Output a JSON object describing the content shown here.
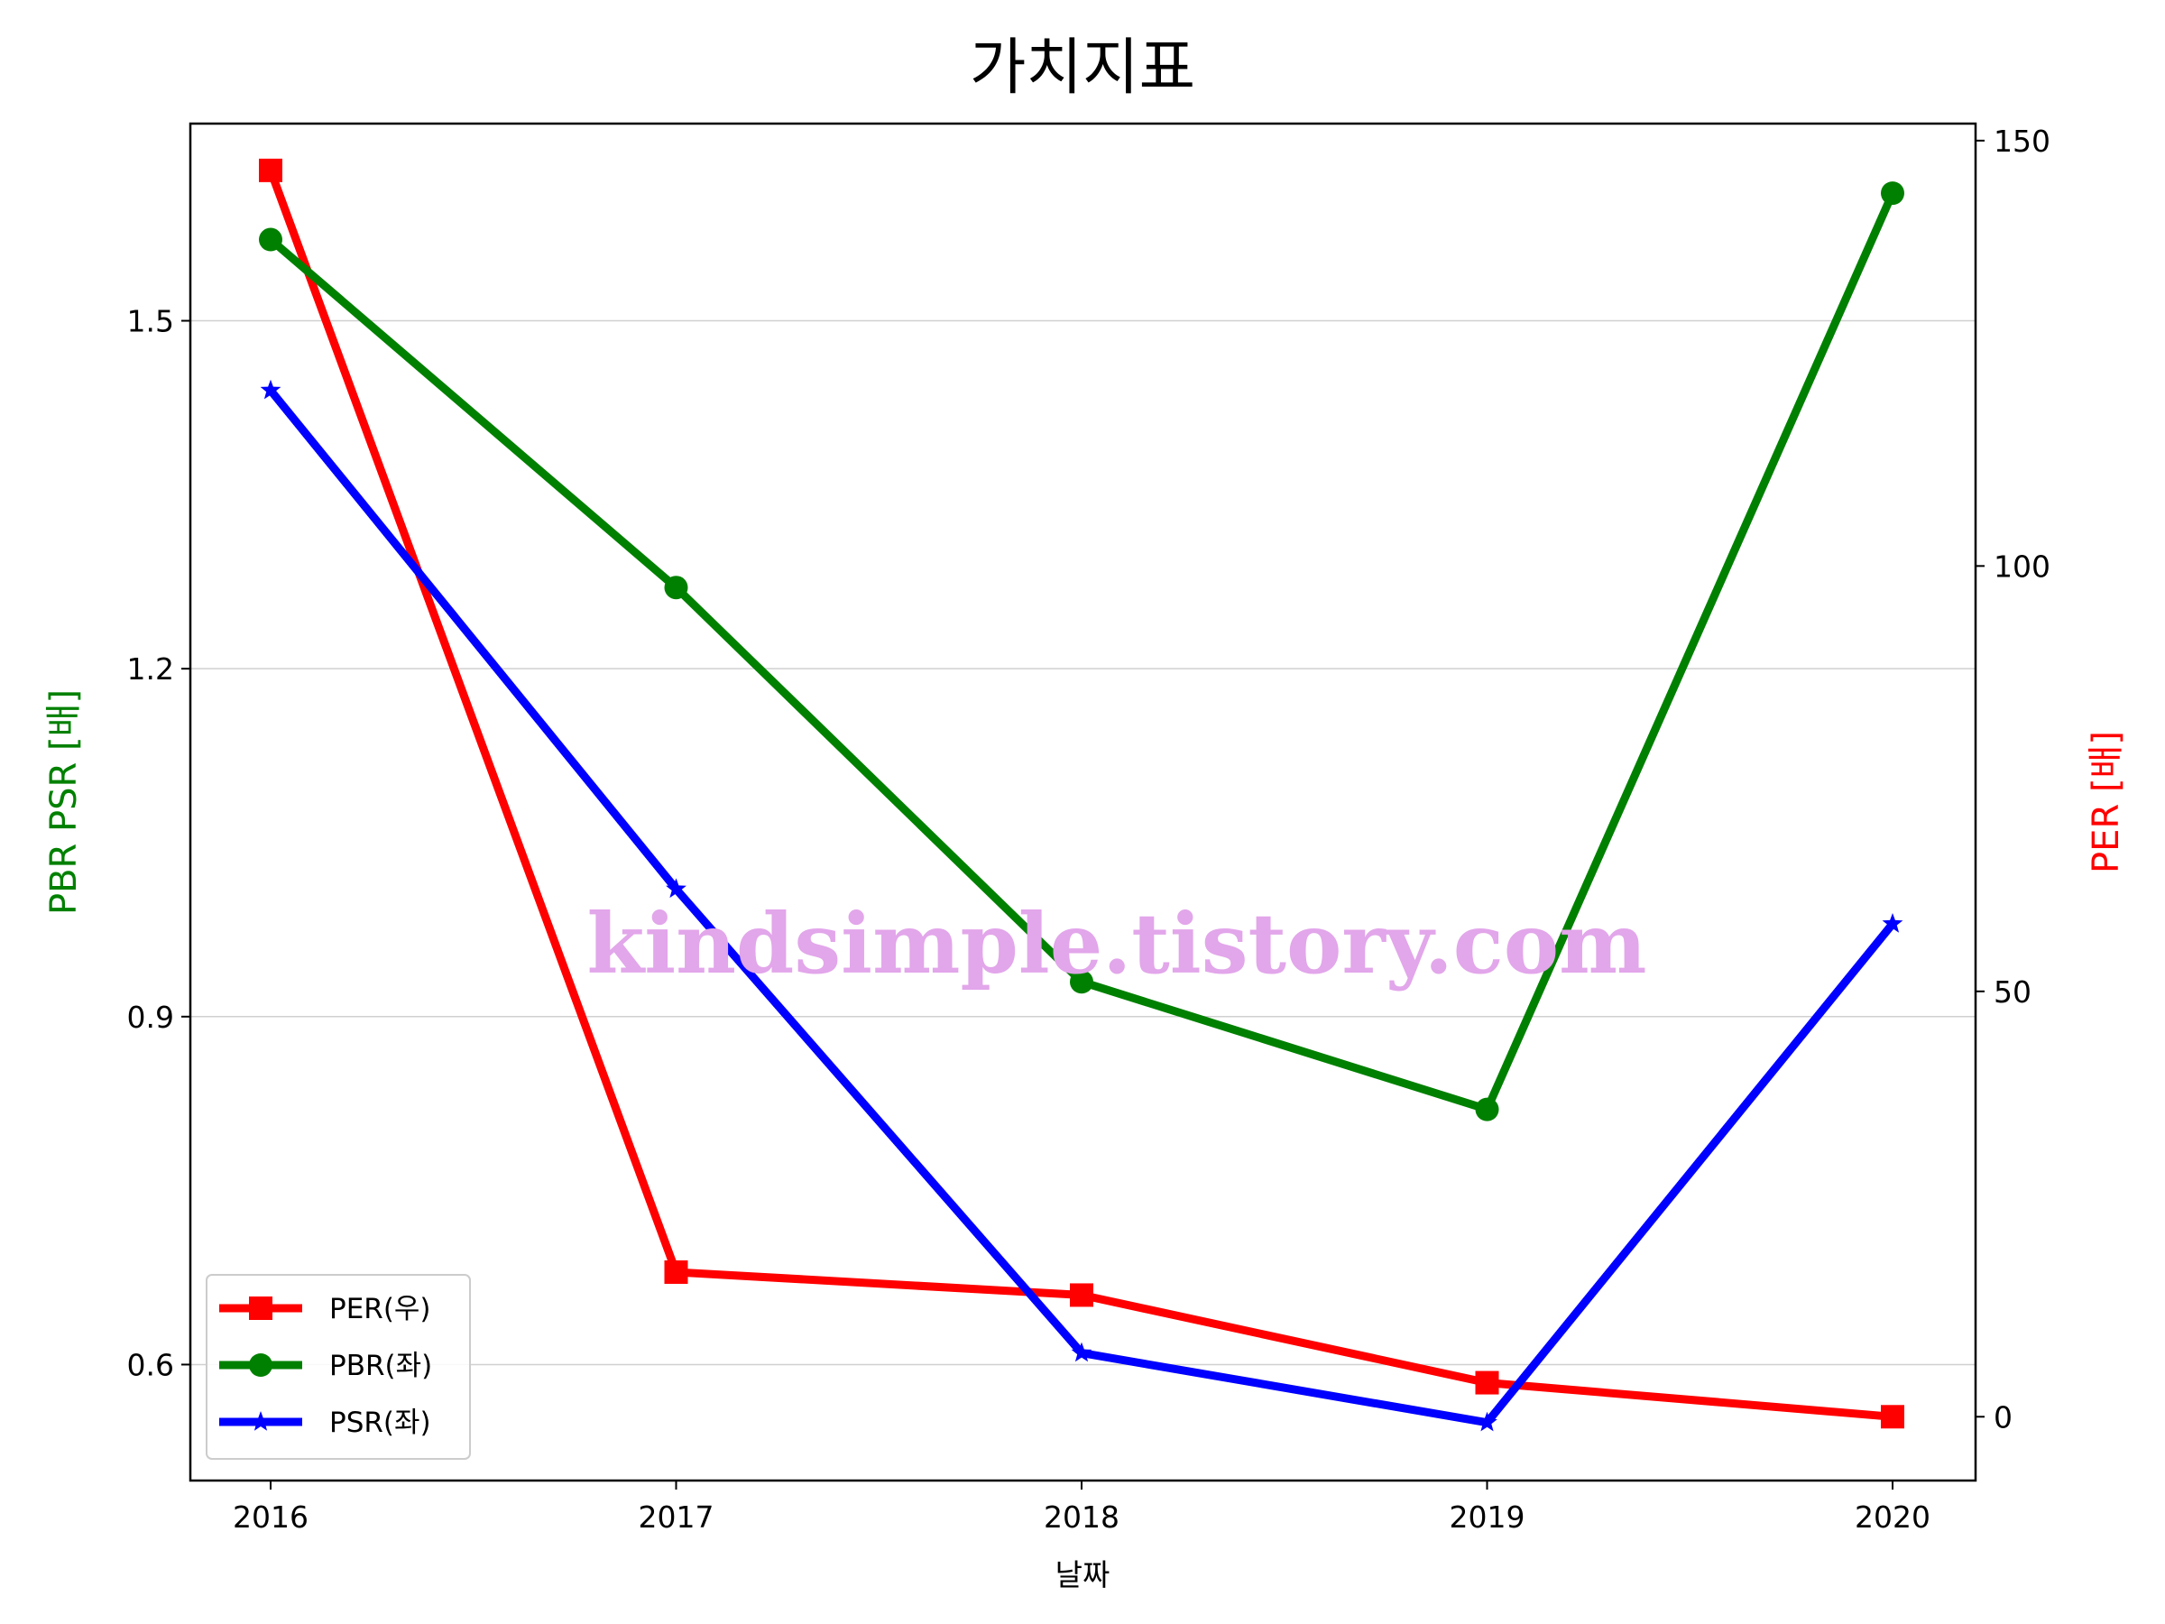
{
  "chart_data": {
    "type": "line",
    "title": "가치지표",
    "xlabel": "날짜",
    "ylabel_left": "PBR PSR [배]",
    "ylabel_right": "PER [배]",
    "x": [
      "2016",
      "2017",
      "2018",
      "2019",
      "2020"
    ],
    "ylim_left": [
      0.5,
      1.67
    ],
    "ylim_right": [
      -7.5,
      152
    ],
    "yticks_left": [
      "0.6",
      "0.9",
      "1.2",
      "1.5"
    ],
    "yticks_right": [
      "0",
      "50",
      "100",
      "150"
    ],
    "grid": "horizontal (left axis)",
    "legend_position": "bottom-left",
    "series": [
      {
        "name": "PER(우)",
        "axis": "right",
        "color": "#ff0000",
        "marker": "square",
        "values": [
          146.5,
          17,
          14.3,
          4,
          0
        ]
      },
      {
        "name": "PBR(좌)",
        "axis": "left",
        "color": "#008000",
        "marker": "circle",
        "values": [
          1.57,
          1.27,
          0.93,
          0.82,
          1.61
        ]
      },
      {
        "name": "PSR(좌)",
        "axis": "left",
        "color": "#0000ff",
        "marker": "star",
        "values": [
          1.44,
          1.01,
          0.61,
          0.55,
          0.98
        ]
      }
    ],
    "watermark": "kindsimple.tistory.com"
  }
}
